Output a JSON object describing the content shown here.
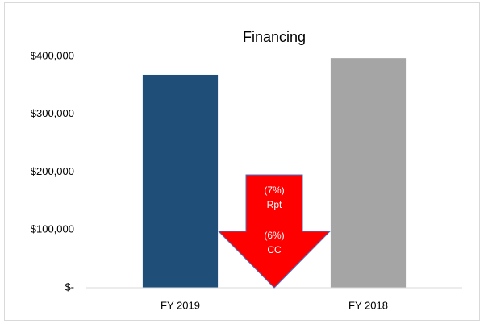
{
  "chart_data": {
    "type": "bar",
    "title": "Financing",
    "categories": [
      "FY 2019",
      "FY 2018"
    ],
    "values": [
      368000,
      397000
    ],
    "colors": [
      "#1f4e79",
      "#a5a5a5"
    ],
    "ylim": [
      0,
      400000
    ],
    "yticks": [
      {
        "value": 0,
        "label": "$-"
      },
      {
        "value": 100000,
        "label": "$100,000"
      },
      {
        "value": 200000,
        "label": "$200,000"
      },
      {
        "value": 300000,
        "label": "$300,000"
      },
      {
        "value": 400000,
        "label": "$400,000"
      }
    ],
    "grid": false,
    "annotations": [
      "(7%)",
      "Rpt",
      "(6%)",
      "CC"
    ]
  }
}
